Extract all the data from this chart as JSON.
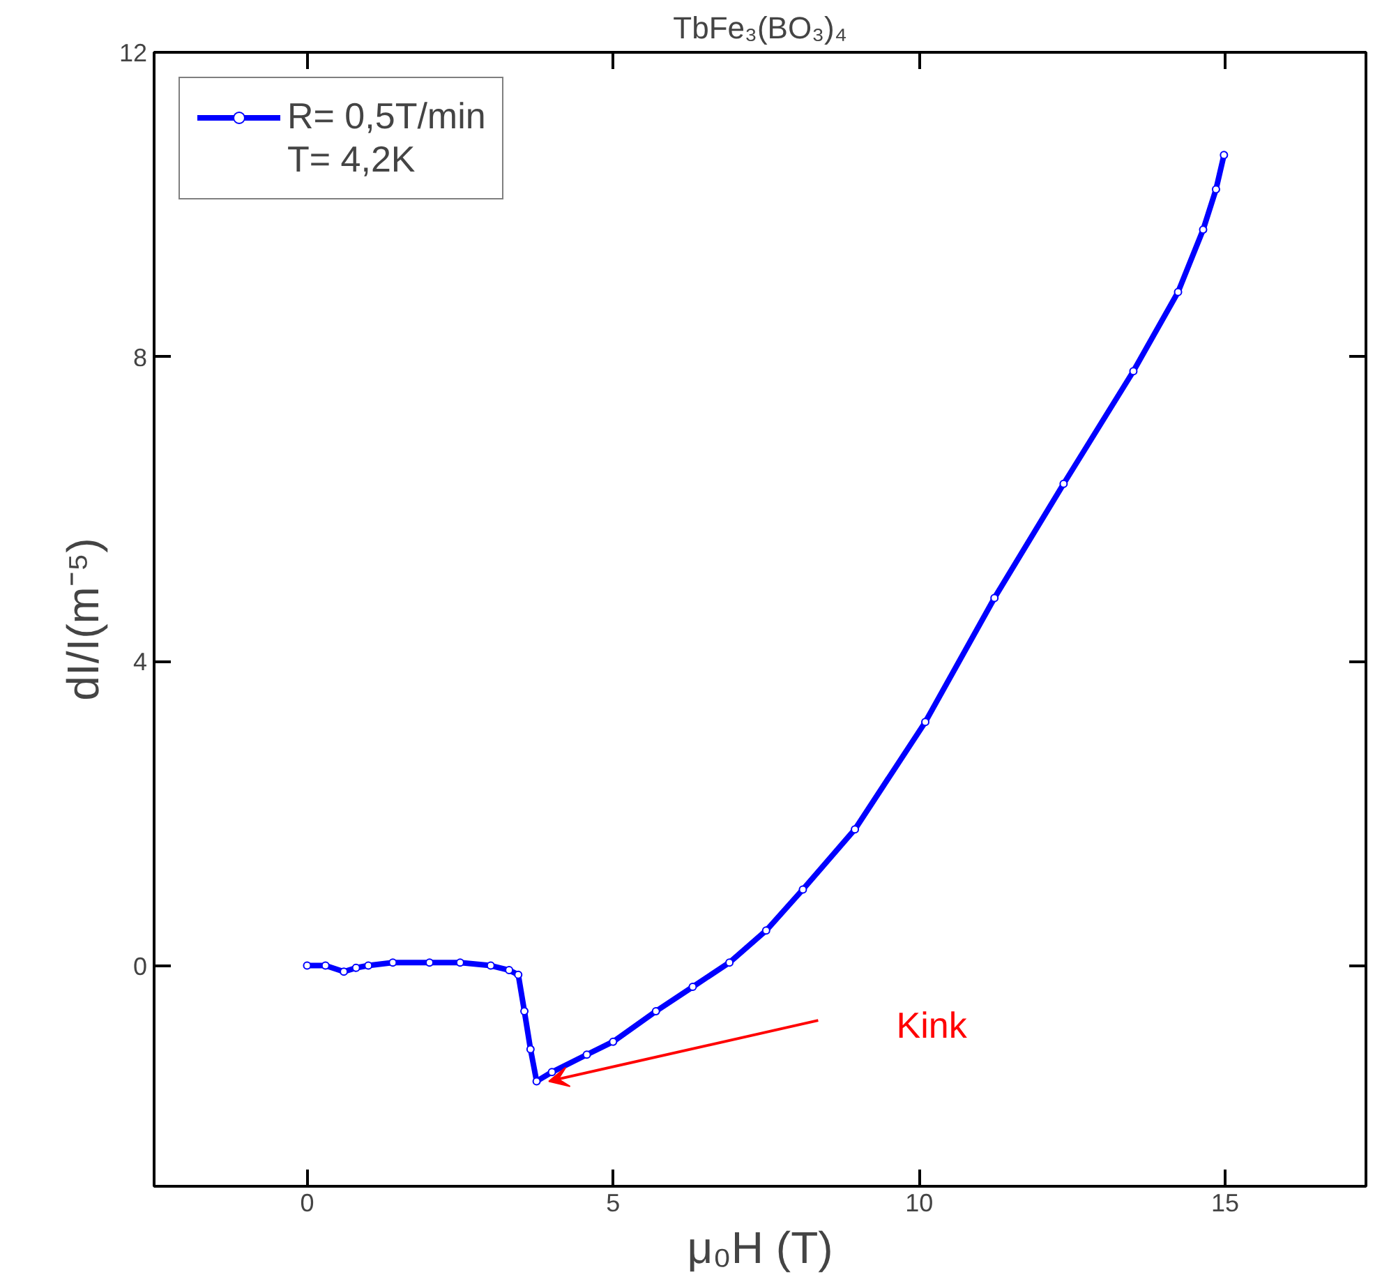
{
  "chart_data": {
    "type": "line",
    "title": "TbFe₃(BO₃)₄",
    "xlabel": "μ₀H (T)",
    "ylabel": "dI/I(m⁻⁵)",
    "xlim": [
      -2.5,
      17.3
    ],
    "ylim": [
      -2.9,
      12
    ],
    "xticks": [
      0,
      5,
      10,
      15
    ],
    "yticks": [
      0,
      4,
      8,
      12
    ],
    "grid": false,
    "legend": "top left",
    "marker": "circle",
    "line_style": "solid",
    "series": [
      {
        "name": "R= 0,5T/min",
        "color": "#0000ff",
        "x": [
          0,
          0.3,
          0.6,
          0.8,
          1.0,
          1.4,
          2.0,
          2.5,
          3.0,
          3.3,
          3.45,
          3.55,
          3.65,
          3.75,
          4.0,
          4.57,
          5.0,
          5.7,
          6.3,
          6.9,
          7.5,
          8.1,
          8.95,
          10.1,
          11.23,
          12.36,
          13.5,
          14.23,
          14.64,
          14.85,
          14.98
        ],
        "values": [
          0,
          0,
          -0.08,
          -0.03,
          0,
          0.04,
          0.04,
          0.04,
          0,
          -0.06,
          -0.12,
          -0.6,
          -1.1,
          -1.52,
          -1.4,
          -1.17,
          -1.0,
          -0.6,
          -0.28,
          0.04,
          0.46,
          1.0,
          1.79,
          3.2,
          4.83,
          6.33,
          7.81,
          8.85,
          9.67,
          10.2,
          10.65
        ]
      }
    ],
    "annotations": [
      "T= 4,2K",
      "Kink"
    ]
  }
}
